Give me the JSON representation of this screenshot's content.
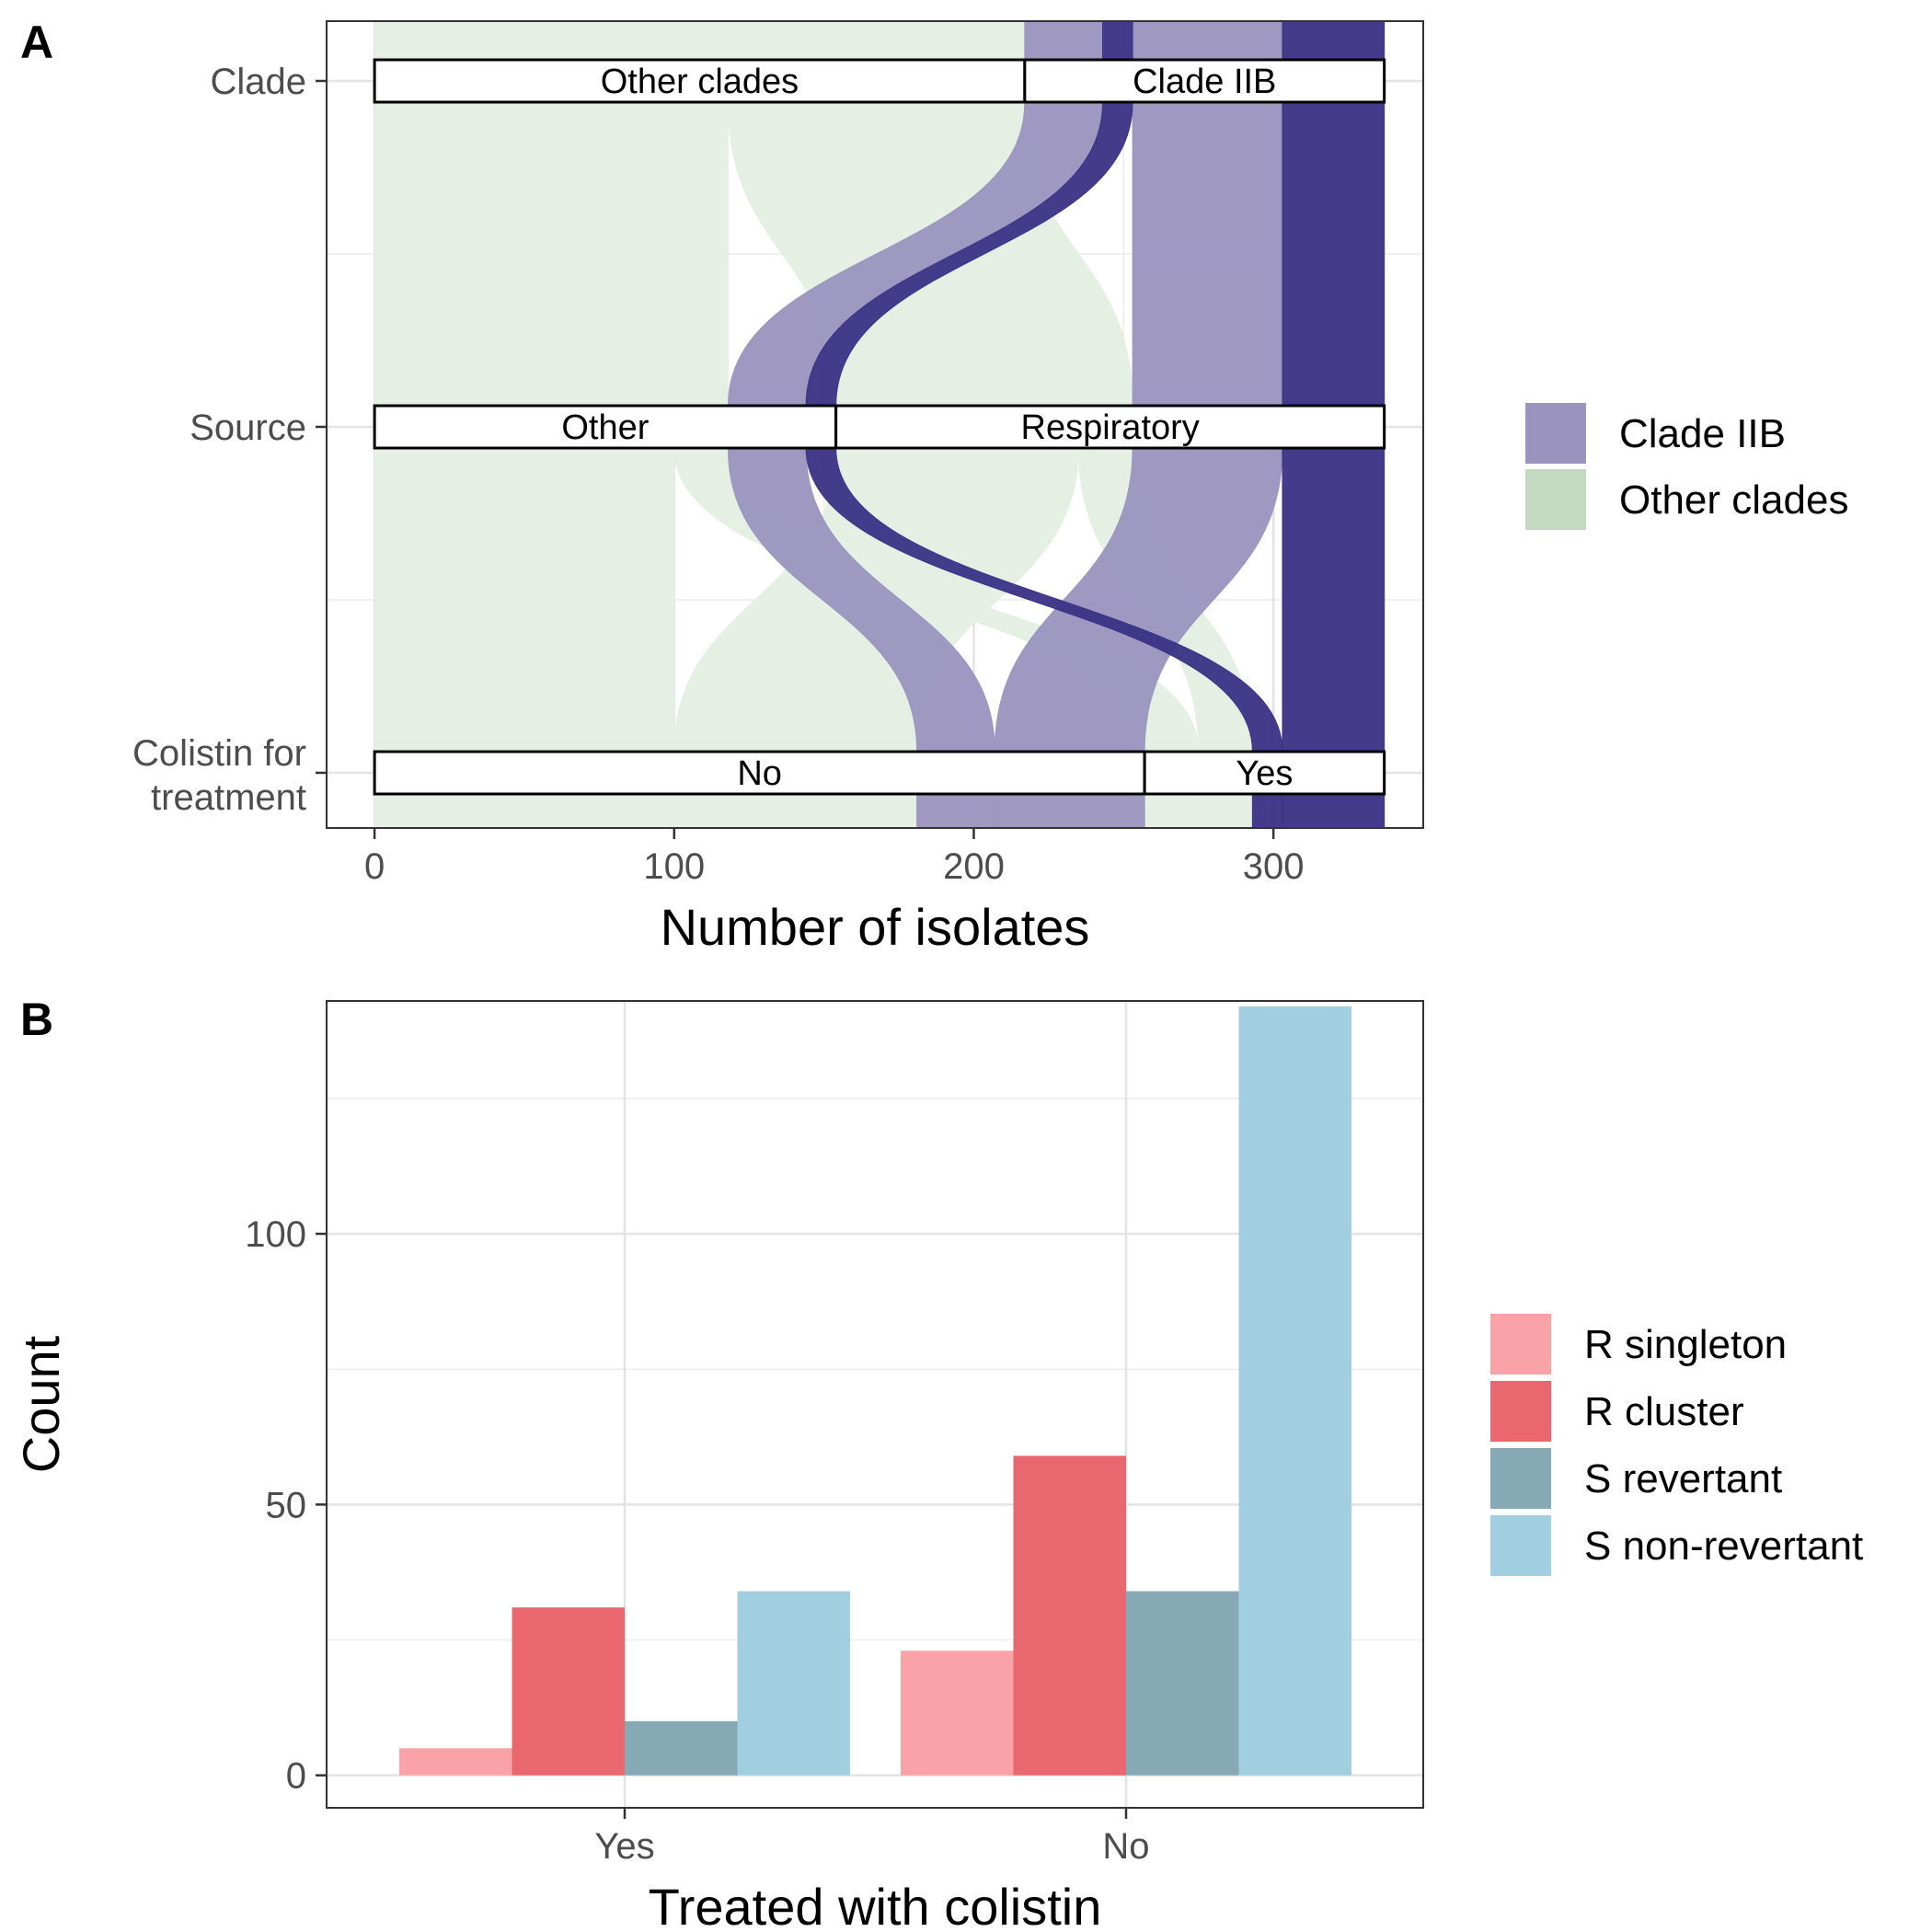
{
  "colors": {
    "clade_iib": "#9a94bf",
    "clade_iib_dark": "#3a3285",
    "other_clades": "#c3d9c0",
    "other_clades_bg": "#e6efe4",
    "r_singleton": "#f9a3a8",
    "r_cluster": "#e9686f",
    "s_revertant": "#86a9b5",
    "s_non_revertant": "#a2cfdf"
  },
  "chart_data": [
    {
      "panel": "A",
      "type": "alluvial",
      "xlabel": "Number of isolates",
      "axes": [
        "Clade",
        "Source",
        "Colistin for treatment"
      ],
      "xlim": [
        -16,
        350
      ],
      "xticks": [
        0,
        100,
        200,
        300
      ],
      "grid": true,
      "legend_position": "right",
      "strata": [
        {
          "axis": "Clade",
          "label": "Other clades",
          "start": 0,
          "end": 217
        },
        {
          "axis": "Clade",
          "label": "Clade IIB",
          "start": 217,
          "end": 337
        },
        {
          "axis": "Source",
          "label": "Other",
          "start": 0,
          "end": 154
        },
        {
          "axis": "Source",
          "label": "Respiratory",
          "start": 154,
          "end": 337
        },
        {
          "axis": "Colistin for treatment",
          "label": "No",
          "start": 0,
          "end": 257
        },
        {
          "axis": "Colistin for treatment",
          "label": "Yes",
          "start": 257,
          "end": 337
        }
      ],
      "flows": [
        {
          "clade": "Clade IIB",
          "source": "Other",
          "colistin": "No",
          "count": 26
        },
        {
          "clade": "Clade IIB",
          "source": "Other",
          "colistin": "Yes",
          "count": 10
        },
        {
          "clade": "Clade IIB",
          "source": "Respiratory",
          "colistin": "No",
          "count": 50
        },
        {
          "clade": "Clade IIB",
          "source": "Respiratory",
          "colistin": "Yes",
          "count": 34
        },
        {
          "clade": "Other clades",
          "source": "Other",
          "colistin": "No",
          "count": 100
        },
        {
          "clade": "Other clades",
          "source": "Other",
          "colistin": "Yes",
          "count": 18
        },
        {
          "clade": "Other clades",
          "source": "Respiratory",
          "colistin": "No",
          "count": 81
        },
        {
          "clade": "Other clades",
          "source": "Respiratory",
          "colistin": "Yes",
          "count": 18
        }
      ],
      "legend": [
        {
          "key": "clade_iib",
          "label": "Clade IIB"
        },
        {
          "key": "other_clades",
          "label": "Other clades"
        }
      ]
    },
    {
      "panel": "B",
      "type": "bar",
      "xlabel": "Treated with colistin",
      "ylabel": "Count",
      "categories": [
        "Yes",
        "No"
      ],
      "ylim": [
        -6,
        143
      ],
      "yticks": [
        0,
        50,
        100
      ],
      "grid": true,
      "legend_position": "right",
      "series": [
        {
          "key": "r_singleton",
          "name": "R singleton",
          "values": [
            5,
            23
          ]
        },
        {
          "key": "r_cluster",
          "name": "R cluster",
          "values": [
            31,
            59
          ]
        },
        {
          "key": "s_revertant",
          "name": "S revertant",
          "values": [
            10,
            34
          ]
        },
        {
          "key": "s_non_revertant",
          "name": "S non-revertant",
          "values": [
            34,
            142
          ]
        }
      ]
    }
  ]
}
